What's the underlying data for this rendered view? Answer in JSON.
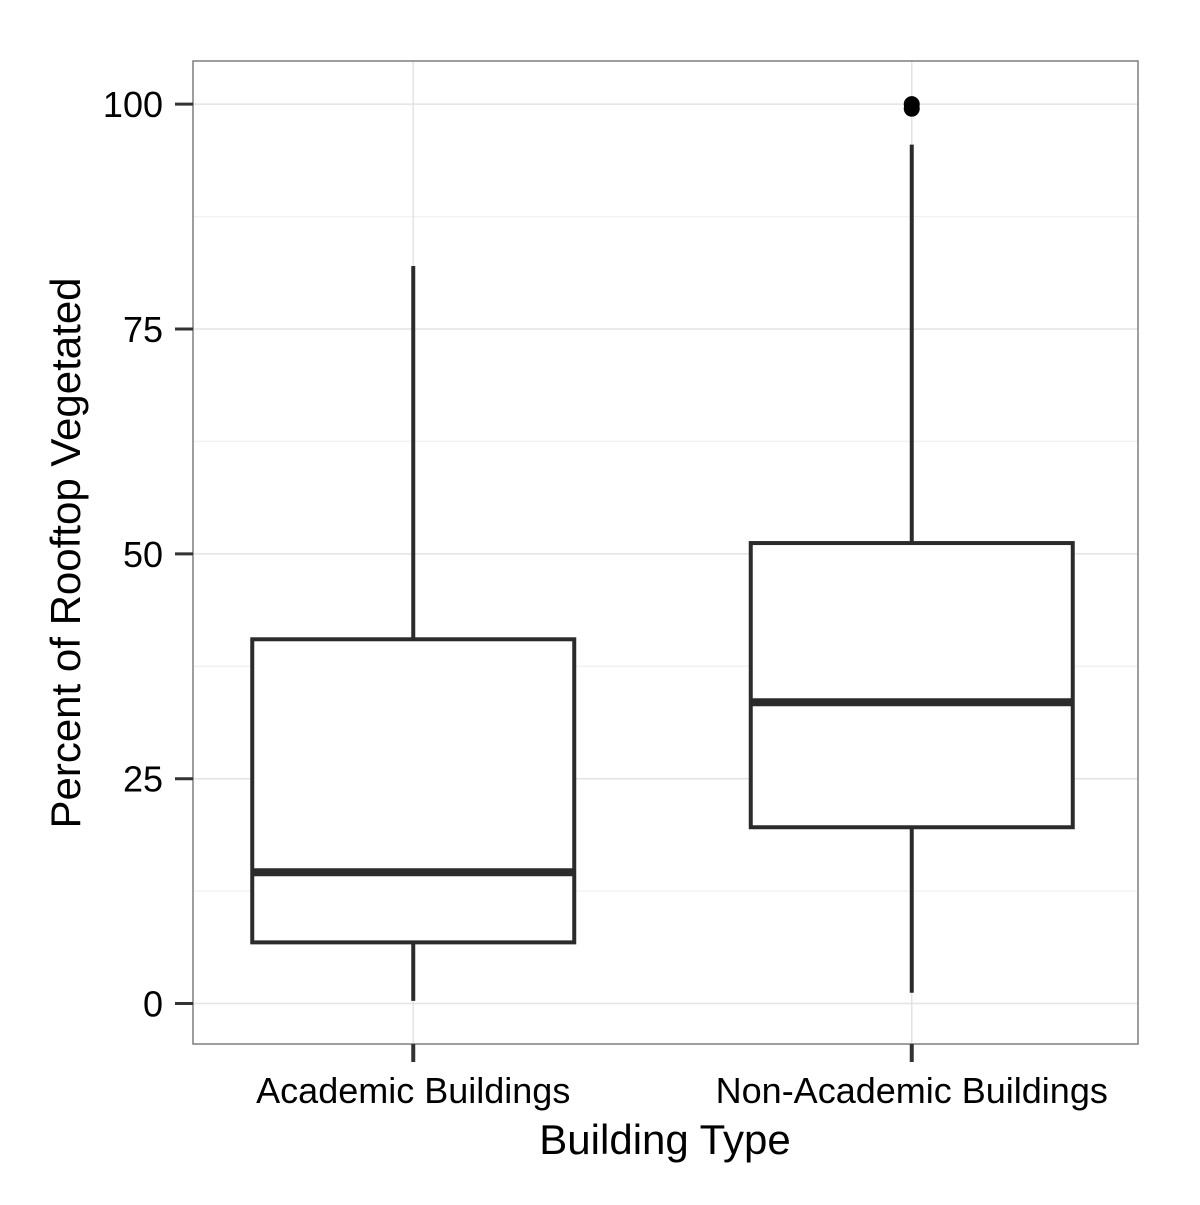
{
  "chart_data": {
    "type": "boxplot",
    "xlabel": "Building Type",
    "ylabel": "Percent of Rooftop Vegetated",
    "categories": [
      "Academic Buildings",
      "Non-Academic Buildings"
    ],
    "boxes": [
      {
        "category": "Academic Buildings",
        "whisker_low": 0.3,
        "q1": 6.8,
        "median": 14.6,
        "q3": 40.5,
        "whisker_high": 82.0,
        "outliers": []
      },
      {
        "category": "Non-Academic Buildings",
        "whisker_low": 1.2,
        "q1": 19.6,
        "median": 33.5,
        "q3": 51.2,
        "whisker_high": 95.5,
        "outliers": [
          99.5,
          100
        ]
      }
    ],
    "yticks": [
      0,
      25,
      50,
      75,
      100
    ],
    "ylim": [
      -4.5,
      104.8
    ],
    "grid": true,
    "legend": "none",
    "colors": {
      "box_stroke": "#2b2b2b",
      "grid_major": "#e3e3e3",
      "grid_minor": "#f2f2f2",
      "panel_border": "#7f7f7f",
      "outlier": "#000000"
    }
  }
}
